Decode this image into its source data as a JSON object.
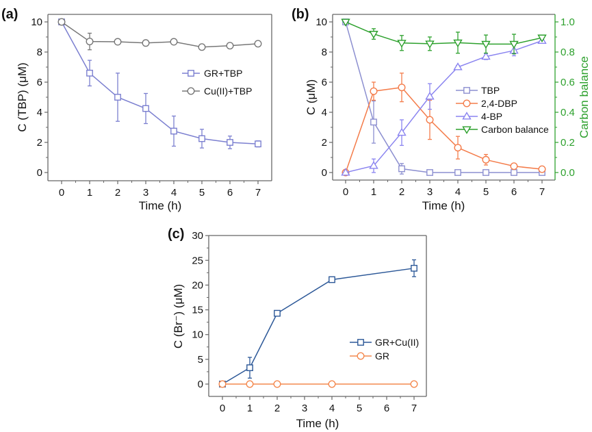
{
  "chart_data": [
    {
      "type": "line",
      "panel_label": "(a)",
      "title": "",
      "xlabel": "Time (h)",
      "ylabel": "C (TBP) (μM)",
      "xlim": [
        -0.5,
        7.5
      ],
      "ylim": [
        -0.5,
        10.5
      ],
      "xticks": [
        0,
        1,
        2,
        3,
        4,
        5,
        6,
        7
      ],
      "yticks": [
        0,
        2,
        4,
        6,
        8,
        10
      ],
      "legend_position": "center-right",
      "series": [
        {
          "name": "GR+TBP",
          "marker": "square",
          "color": "#7b7fd0",
          "x": [
            0,
            1,
            2,
            3,
            4,
            5,
            6,
            7
          ],
          "y": [
            10.0,
            6.6,
            5.0,
            4.25,
            2.75,
            2.25,
            2.0,
            1.9
          ],
          "err": [
            0,
            0.85,
            1.6,
            1.0,
            1.0,
            0.62,
            0.42,
            0.2
          ]
        },
        {
          "name": "Cu(II)+TBP",
          "marker": "circle",
          "color": "#777777",
          "x": [
            0,
            1,
            2,
            3,
            4,
            5,
            6,
            7
          ],
          "y": [
            10.0,
            8.7,
            8.68,
            8.6,
            8.68,
            8.33,
            8.42,
            8.55
          ],
          "err": [
            0,
            0.55,
            0.05,
            0.15,
            0.15,
            0.05,
            0.05,
            0.05
          ]
        }
      ]
    },
    {
      "type": "line",
      "panel_label": "(b)",
      "title": "",
      "xlabel": "Time (h)",
      "ylabel": "C (μM)",
      "ylabel_right": "Carbon balance",
      "xlim": [
        -0.5,
        7.5
      ],
      "ylim": [
        -0.5,
        10.5
      ],
      "ylim_right": [
        -0.05,
        1.05
      ],
      "xticks": [
        0,
        1,
        2,
        3,
        4,
        5,
        6,
        7
      ],
      "yticks": [
        0,
        2,
        4,
        6,
        8,
        10
      ],
      "yticks_right": [
        "0.0",
        "0.2",
        "0.4",
        "0.6",
        "0.8",
        "1.0"
      ],
      "right_axis_color": "#2ca02c",
      "legend_position": "center-right",
      "series": [
        {
          "name": "TBP",
          "axis": "left",
          "marker": "square",
          "color": "#8c8fd0",
          "x": [
            0,
            1,
            2,
            3,
            4,
            5,
            6,
            7
          ],
          "y": [
            10.0,
            3.35,
            0.25,
            0.0,
            0.0,
            0.0,
            0.0,
            0.0
          ],
          "err": [
            0,
            1.4,
            0.35,
            0,
            0,
            0,
            0,
            0
          ]
        },
        {
          "name": "2,4-DBP",
          "axis": "left",
          "marker": "circle",
          "color": "#f47c4a",
          "x": [
            0,
            1,
            2,
            3,
            4,
            5,
            6,
            7
          ],
          "y": [
            0.0,
            5.4,
            5.65,
            3.5,
            1.65,
            0.85,
            0.42,
            0.22
          ],
          "err": [
            0,
            0.6,
            0.95,
            1.3,
            0.75,
            0.35,
            0.15,
            0.08
          ]
        },
        {
          "name": "4-BP",
          "axis": "left",
          "marker": "triangle-up",
          "color": "#8a84f0",
          "x": [
            0,
            1,
            2,
            3,
            4,
            5,
            6,
            7
          ],
          "y": [
            0.0,
            0.45,
            2.65,
            5.05,
            7.0,
            7.7,
            8.1,
            8.75
          ],
          "err": [
            0,
            0.45,
            0.85,
            0.85,
            0.1,
            0.2,
            0.35,
            0.15
          ]
        },
        {
          "name": "Carbon balance",
          "axis": "right",
          "marker": "triangle-down",
          "color": "#2ca02c",
          "x": [
            0,
            1,
            2,
            3,
            4,
            5,
            6,
            7
          ],
          "y": [
            1.0,
            0.92,
            0.86,
            0.855,
            0.862,
            0.853,
            0.853,
            0.895
          ],
          "err": [
            0,
            0.035,
            0.05,
            0.045,
            0.07,
            0.06,
            0.065,
            0.01
          ]
        }
      ]
    },
    {
      "type": "line",
      "panel_label": "(c)",
      "title": "",
      "xlabel": "Time (h)",
      "ylabel": "C (Br⁻) (μM)",
      "xlim": [
        -0.35,
        7.45
      ],
      "ylim": [
        -2.5,
        30
      ],
      "xticks": [
        0,
        1,
        2,
        3,
        4,
        5,
        6,
        7
      ],
      "yticks": [
        0,
        5,
        10,
        15,
        20,
        25,
        30
      ],
      "legend_position": "center-right",
      "series": [
        {
          "name": "GR+Cu(II)",
          "marker": "square",
          "color": "#2b5797",
          "x": [
            0,
            1,
            2,
            4,
            7
          ],
          "y": [
            0.0,
            3.3,
            14.3,
            21.1,
            23.4
          ],
          "err": [
            0,
            2.1,
            0.2,
            0.35,
            1.7
          ]
        },
        {
          "name": "GR",
          "marker": "circle",
          "color": "#f4894f",
          "x": [
            0,
            1,
            2,
            4,
            7
          ],
          "y": [
            0.0,
            0.0,
            0.0,
            0.0,
            0.0
          ],
          "err": [
            0,
            0,
            0,
            0,
            0
          ]
        }
      ]
    }
  ]
}
